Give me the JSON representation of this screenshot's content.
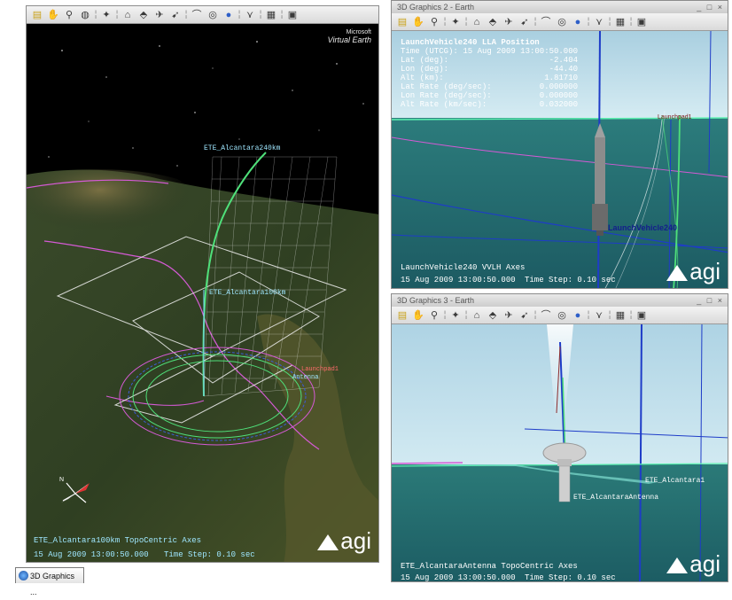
{
  "left_window": {
    "title": "",
    "toolbar_icons": [
      "new-scene-icon",
      "hand-pan-icon",
      "zoom-icon",
      "globe-icon",
      "sep",
      "satellite-icon",
      "sep",
      "facility-icon",
      "vehicle-icon",
      "aircraft-icon",
      "missile-icon",
      "sep",
      "measure-icon",
      "target-icon",
      "earth-icon",
      "sep",
      "bird-icon",
      "sep",
      "layers-icon",
      "sep",
      "monitor-icon"
    ],
    "brand_top": "Microsoft",
    "brand_bottom": "Virtual Earth",
    "label_trajectory": "ETE_Alcantara240km",
    "label_mid": "ETE_Alcantara100km",
    "label_facility": "Launchpad1",
    "label_sensor": "Antenna",
    "axes_label": "ETE_Alcantara100km TopoCentric Axes",
    "date_line": "15 Aug 2009 13:00:50.000",
    "time_step": "Time Step: 0.10 sec",
    "logo": "agi"
  },
  "top_right_window": {
    "title": "3D Graphics 2 - Earth",
    "toolbar_icons": [
      "new-scene-icon",
      "hand-pan-icon",
      "zoom-icon",
      "sep",
      "satellite-icon",
      "sep",
      "facility-icon",
      "vehicle-icon",
      "aircraft-icon",
      "missile-icon",
      "sep",
      "measure-icon",
      "target-icon",
      "earth-icon",
      "sep",
      "bird-icon",
      "sep",
      "layers-icon",
      "sep",
      "monitor-icon"
    ],
    "hud_title": "LaunchVehicle240 LLA Position",
    "hud_rows": [
      {
        "label": "Time (UTCG):",
        "value": "15 Aug 2009 13:00:50.000"
      },
      {
        "label": "Lat (deg):",
        "value": "-2.404"
      },
      {
        "label": "Lon (deg):",
        "value": "-44.40"
      },
      {
        "label": "Alt (km):",
        "value": "1.81710"
      },
      {
        "label": "Lat Rate (deg/sec):",
        "value": "0.000000"
      },
      {
        "label": "Lon Rate (deg/sec):",
        "value": "0.000000"
      },
      {
        "label": "Alt Rate (km/sec):",
        "value": "0.032000"
      }
    ],
    "vehicle_label": "LaunchVehicle240",
    "pad_label": "Launchpad1",
    "axes_label": "LaunchVehicle240 VVLH Axes",
    "date_line": "15 Aug 2009 13:00:50.000",
    "time_step": "Time Step: 0.10 sec",
    "logo": "agi"
  },
  "bottom_right_window": {
    "title": "3D Graphics 3 - Earth",
    "toolbar_icons": [
      "new-scene-icon",
      "hand-pan-icon",
      "zoom-icon",
      "sep",
      "satellite-icon",
      "sep",
      "facility-icon",
      "vehicle-icon",
      "aircraft-icon",
      "missile-icon",
      "sep",
      "measure-icon",
      "target-icon",
      "earth-icon",
      "sep",
      "bird-icon",
      "sep",
      "layers-icon",
      "sep",
      "monitor-icon"
    ],
    "label_right": "ETE_Alcantara1",
    "label_antenna": "ETE_AlcantaraAntenna",
    "axes_label": "ETE_AlcantaraAntenna TopoCentric Axes",
    "date_line": "15 Aug 2009 13:00:50.000",
    "time_step": "Time Step: 0.10 sec",
    "logo": "agi"
  },
  "taskbar": {
    "tab_label": "3D Graphics ..."
  },
  "colors": {
    "trajectory": "#4fe07a",
    "sensor_grid": "#ffffff",
    "sky_light": "#c6e3ee",
    "ocean_teal": "#2c7c7c",
    "boundary_magenta": "#d55ad5",
    "axis_blue": "#1e3cc8"
  }
}
